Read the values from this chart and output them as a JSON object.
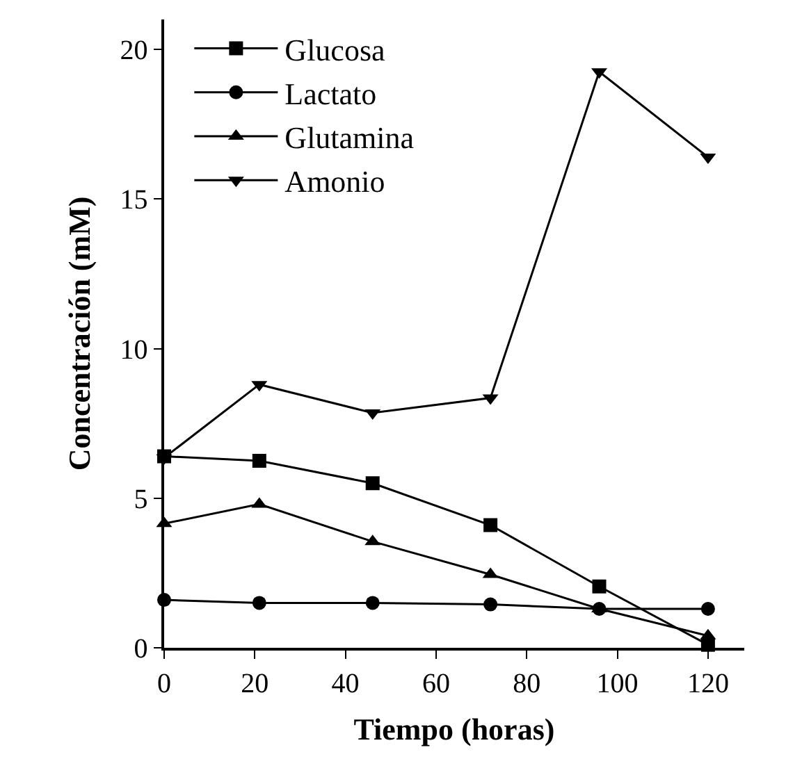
{
  "chart_data": {
    "type": "line",
    "xlabel": "Tiempo (horas)",
    "ylabel": "Concentración (mM)",
    "x": [
      0,
      21,
      46,
      72,
      96,
      120
    ],
    "series": [
      {
        "name": "Glucosa",
        "color": "#000000",
        "marker": "square",
        "values": [
          6.4,
          6.25,
          5.5,
          4.1,
          2.05,
          0.1
        ]
      },
      {
        "name": "Lactato",
        "color": "#000000",
        "marker": "circle",
        "values": [
          1.6,
          1.5,
          1.5,
          1.45,
          1.3,
          1.3
        ]
      },
      {
        "name": "Glutamina",
        "color": "#000000",
        "marker": "triangle",
        "values": [
          4.15,
          4.8,
          3.55,
          2.45,
          1.3,
          0.4
        ]
      },
      {
        "name": "Amonio",
        "color": "#000000",
        "marker": "triangle-down",
        "values": [
          6.35,
          8.8,
          7.85,
          8.35,
          19.25,
          16.4
        ]
      }
    ],
    "xlim": [
      0,
      128
    ],
    "ylim": [
      0,
      21
    ],
    "xticks": [
      0,
      20,
      40,
      60,
      80,
      100,
      120
    ],
    "yticks": [
      0,
      5,
      10,
      15,
      20
    ],
    "legend": "top left",
    "line_style": "solid"
  }
}
